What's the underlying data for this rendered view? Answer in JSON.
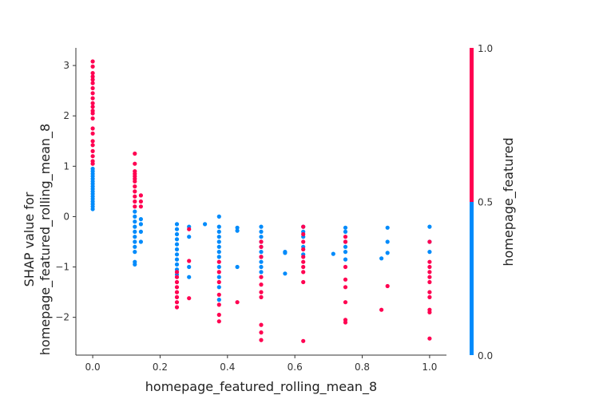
{
  "chart_data": {
    "type": "scatter",
    "title": "",
    "xlabel": "homepage_featured_rolling_mean_8",
    "ylabel_lines": [
      "SHAP value for",
      "homepage_featured_rolling_mean_8"
    ],
    "xlim": [
      -0.05,
      1.05
    ],
    "ylim": [
      -2.75,
      3.35
    ],
    "x_ticks": [
      0.0,
      0.2,
      0.4,
      0.6,
      0.8,
      1.0
    ],
    "x_tick_labels": [
      "0.0",
      "0.2",
      "0.4",
      "0.6",
      "0.8",
      "1.0"
    ],
    "y_ticks": [
      -2,
      -1,
      0,
      1,
      2,
      3
    ],
    "y_tick_labels": [
      "−2",
      "−1",
      "0",
      "1",
      "2",
      "3"
    ],
    "grid": false,
    "colorbar": {
      "label": "homepage_featured",
      "min": 0.0,
      "max": 1.0,
      "ticks": [
        0.0,
        0.5,
        1.0
      ],
      "tick_labels": [
        "0.0",
        "0.5",
        "1.0"
      ],
      "low_color": "#008bfb",
      "high_color": "#ff0051"
    },
    "series": [
      {
        "color_value": 0,
        "points": [
          [
            0.0,
            0.15
          ],
          [
            0.0,
            0.2
          ],
          [
            0.0,
            0.25
          ],
          [
            0.0,
            0.3
          ],
          [
            0.0,
            0.35
          ],
          [
            0.0,
            0.4
          ],
          [
            0.0,
            0.45
          ],
          [
            0.0,
            0.5
          ],
          [
            0.0,
            0.55
          ],
          [
            0.0,
            0.6
          ],
          [
            0.0,
            0.65
          ],
          [
            0.0,
            0.7
          ],
          [
            0.0,
            0.75
          ],
          [
            0.0,
            0.8
          ],
          [
            0.0,
            0.85
          ],
          [
            0.0,
            0.9
          ],
          [
            0.0,
            0.95
          ],
          [
            0.125,
            -0.95
          ],
          [
            0.125,
            -0.9
          ],
          [
            0.125,
            -0.7
          ],
          [
            0.125,
            -0.6
          ],
          [
            0.125,
            -0.5
          ],
          [
            0.125,
            -0.4
          ],
          [
            0.125,
            -0.3
          ],
          [
            0.125,
            -0.2
          ],
          [
            0.125,
            -0.1
          ],
          [
            0.125,
            0.0
          ],
          [
            0.125,
            0.1
          ],
          [
            0.143,
            -0.05
          ],
          [
            0.143,
            -0.15
          ],
          [
            0.143,
            -0.3
          ],
          [
            0.143,
            -0.5
          ],
          [
            0.25,
            -0.15
          ],
          [
            0.25,
            -0.25
          ],
          [
            0.25,
            -0.35
          ],
          [
            0.25,
            -0.45
          ],
          [
            0.25,
            -0.55
          ],
          [
            0.25,
            -0.65
          ],
          [
            0.25,
            -0.75
          ],
          [
            0.25,
            -0.85
          ],
          [
            0.25,
            -0.95
          ],
          [
            0.25,
            -1.05
          ],
          [
            0.25,
            -1.15
          ],
          [
            0.286,
            -0.2
          ],
          [
            0.286,
            -0.4
          ],
          [
            0.286,
            -1.0
          ],
          [
            0.286,
            -1.2
          ],
          [
            0.333,
            -0.15
          ],
          [
            0.375,
            0.0
          ],
          [
            0.375,
            -0.2
          ],
          [
            0.375,
            -0.3
          ],
          [
            0.375,
            -0.4
          ],
          [
            0.375,
            -0.5
          ],
          [
            0.375,
            -0.6
          ],
          [
            0.375,
            -0.7
          ],
          [
            0.375,
            -0.8
          ],
          [
            0.375,
            -1.0
          ],
          [
            0.375,
            -1.2
          ],
          [
            0.375,
            -1.4
          ],
          [
            0.375,
            -1.65
          ],
          [
            0.429,
            -0.22
          ],
          [
            0.429,
            -0.28
          ],
          [
            0.429,
            -1.0
          ],
          [
            0.5,
            -0.2
          ],
          [
            0.5,
            -0.3
          ],
          [
            0.5,
            -0.4
          ],
          [
            0.5,
            -0.5
          ],
          [
            0.5,
            -0.6
          ],
          [
            0.5,
            -0.7
          ],
          [
            0.5,
            -0.8
          ],
          [
            0.5,
            -0.9
          ],
          [
            0.5,
            -1.0
          ],
          [
            0.5,
            -1.1
          ],
          [
            0.571,
            -0.7
          ],
          [
            0.571,
            -0.72
          ],
          [
            0.571,
            -1.13
          ],
          [
            0.625,
            -0.2
          ],
          [
            0.625,
            -0.3
          ],
          [
            0.625,
            -0.4
          ],
          [
            0.625,
            -0.6
          ],
          [
            0.625,
            -0.75
          ],
          [
            0.714,
            -0.74
          ],
          [
            0.75,
            -0.22
          ],
          [
            0.75,
            -0.3
          ],
          [
            0.75,
            -0.5
          ],
          [
            0.75,
            -0.6
          ],
          [
            0.75,
            -0.7
          ],
          [
            0.75,
            -0.85
          ],
          [
            0.857,
            -0.83
          ],
          [
            0.875,
            -0.22
          ],
          [
            0.875,
            -0.5
          ],
          [
            0.875,
            -0.72
          ],
          [
            1.0,
            -0.2
          ],
          [
            1.0,
            -0.5
          ],
          [
            1.0,
            -0.7
          ]
        ]
      },
      {
        "color_value": 1,
        "points": [
          [
            0.0,
            3.08
          ],
          [
            0.0,
            2.98
          ],
          [
            0.0,
            2.85
          ],
          [
            0.0,
            2.78
          ],
          [
            0.0,
            2.72
          ],
          [
            0.0,
            2.65
          ],
          [
            0.0,
            2.55
          ],
          [
            0.0,
            2.45
          ],
          [
            0.0,
            2.35
          ],
          [
            0.0,
            2.25
          ],
          [
            0.0,
            2.18
          ],
          [
            0.0,
            2.1
          ],
          [
            0.0,
            2.05
          ],
          [
            0.0,
            1.95
          ],
          [
            0.0,
            1.75
          ],
          [
            0.0,
            1.65
          ],
          [
            0.0,
            1.5
          ],
          [
            0.0,
            1.42
          ],
          [
            0.0,
            1.3
          ],
          [
            0.0,
            1.2
          ],
          [
            0.0,
            1.1
          ],
          [
            0.0,
            1.05
          ],
          [
            0.125,
            1.25
          ],
          [
            0.125,
            1.05
          ],
          [
            0.125,
            0.9
          ],
          [
            0.125,
            0.85
          ],
          [
            0.125,
            0.8
          ],
          [
            0.125,
            0.75
          ],
          [
            0.125,
            0.7
          ],
          [
            0.125,
            0.6
          ],
          [
            0.125,
            0.5
          ],
          [
            0.125,
            0.4
          ],
          [
            0.125,
            0.3
          ],
          [
            0.125,
            0.2
          ],
          [
            0.143,
            0.42
          ],
          [
            0.143,
            0.3
          ],
          [
            0.143,
            0.2
          ],
          [
            0.25,
            -1.1
          ],
          [
            0.25,
            -1.2
          ],
          [
            0.25,
            -1.3
          ],
          [
            0.25,
            -1.4
          ],
          [
            0.25,
            -1.5
          ],
          [
            0.25,
            -1.6
          ],
          [
            0.25,
            -1.7
          ],
          [
            0.25,
            -1.8
          ],
          [
            0.286,
            -0.25
          ],
          [
            0.286,
            -0.88
          ],
          [
            0.286,
            -1.62
          ],
          [
            0.375,
            -0.9
          ],
          [
            0.375,
            -1.1
          ],
          [
            0.375,
            -1.3
          ],
          [
            0.375,
            -1.55
          ],
          [
            0.375,
            -1.75
          ],
          [
            0.375,
            -1.95
          ],
          [
            0.375,
            -2.08
          ],
          [
            0.429,
            -1.7
          ],
          [
            0.5,
            -0.5
          ],
          [
            0.5,
            -0.6
          ],
          [
            0.5,
            -0.8
          ],
          [
            0.5,
            -1.2
          ],
          [
            0.5,
            -1.35
          ],
          [
            0.5,
            -1.5
          ],
          [
            0.5,
            -1.6
          ],
          [
            0.5,
            -2.15
          ],
          [
            0.5,
            -2.3
          ],
          [
            0.5,
            -2.45
          ],
          [
            0.625,
            -0.2
          ],
          [
            0.625,
            -0.35
          ],
          [
            0.625,
            -0.5
          ],
          [
            0.625,
            -0.65
          ],
          [
            0.625,
            -0.8
          ],
          [
            0.625,
            -0.9
          ],
          [
            0.625,
            -1.0
          ],
          [
            0.625,
            -1.1
          ],
          [
            0.625,
            -1.3
          ],
          [
            0.625,
            -2.47
          ],
          [
            0.75,
            -0.4
          ],
          [
            0.75,
            -0.5
          ],
          [
            0.75,
            -1.0
          ],
          [
            0.75,
            -1.25
          ],
          [
            0.75,
            -1.4
          ],
          [
            0.75,
            -1.7
          ],
          [
            0.75,
            -2.05
          ],
          [
            0.75,
            -2.1
          ],
          [
            0.857,
            -1.85
          ],
          [
            0.875,
            -1.38
          ],
          [
            1.0,
            -0.5
          ],
          [
            1.0,
            -0.9
          ],
          [
            1.0,
            -1.0
          ],
          [
            1.0,
            -1.1
          ],
          [
            1.0,
            -1.2
          ],
          [
            1.0,
            -1.3
          ],
          [
            1.0,
            -1.5
          ],
          [
            1.0,
            -1.6
          ],
          [
            1.0,
            -1.85
          ],
          [
            1.0,
            -1.9
          ],
          [
            1.0,
            -2.42
          ]
        ]
      }
    ]
  }
}
